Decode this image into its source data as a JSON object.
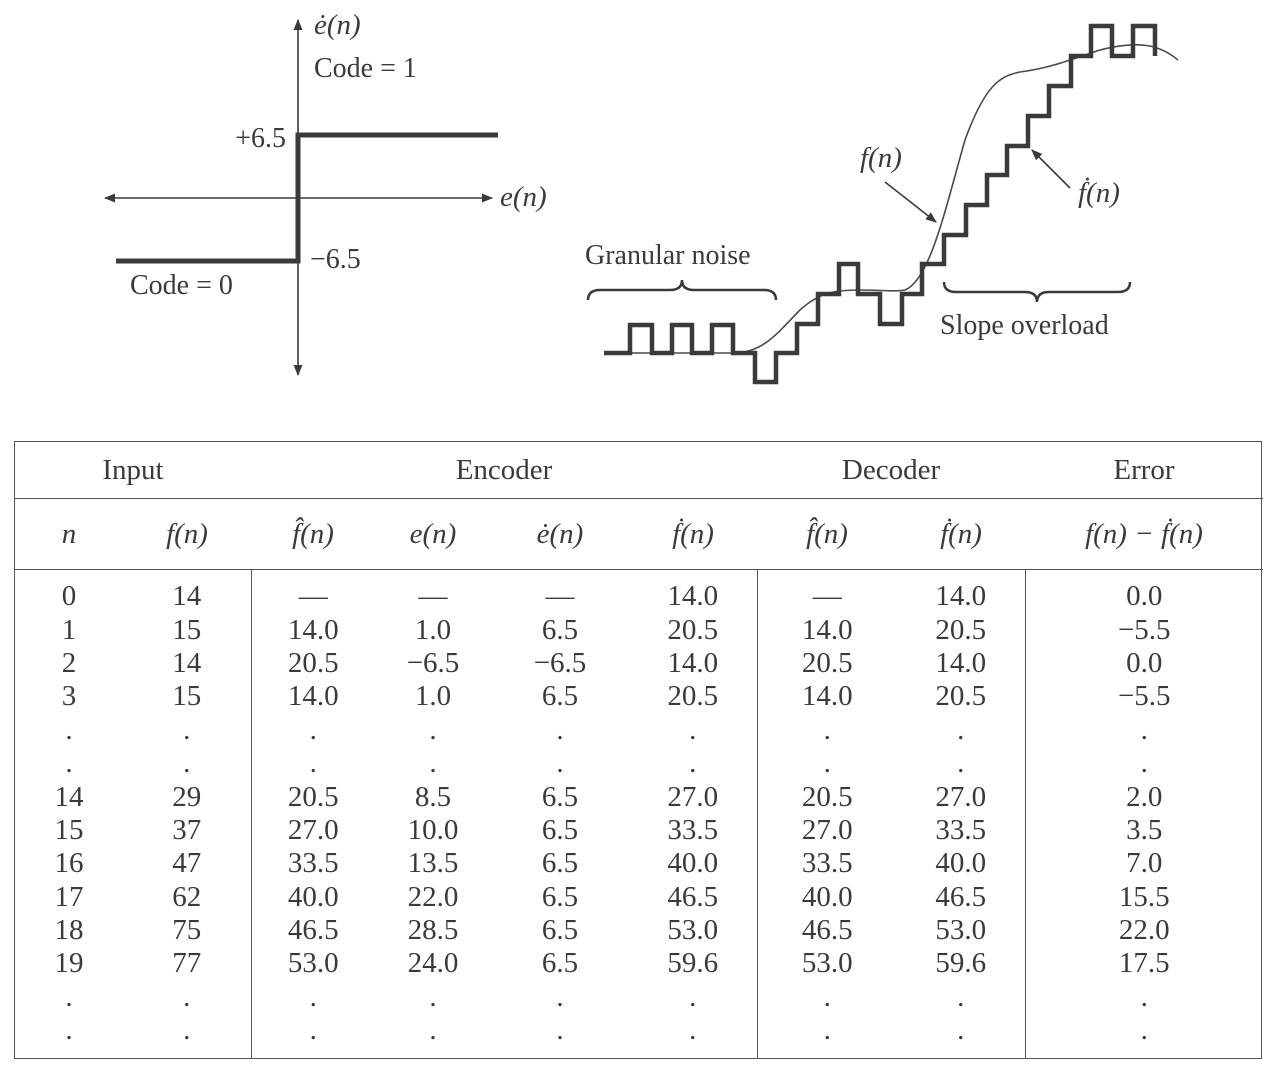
{
  "figure": {
    "quantizer": {
      "y_axis_label": "ė(n)",
      "code_one": "Code = 1",
      "plus_level": "+6.5",
      "minus_level": "−6.5",
      "x_axis_label": "e(n)",
      "code_zero": "Code = 0"
    },
    "waveform": {
      "granular_noise": "Granular noise",
      "slope_overload": "Slope overload",
      "signal_label": "f(n)",
      "staircase_label": "ḟ(n)"
    }
  },
  "table": {
    "groups": [
      "Input",
      "Encoder",
      "Decoder",
      "Error"
    ],
    "headers": [
      "n",
      "f(n)",
      "f̂(n)",
      "e(n)",
      "ė(n)",
      "ḟ(n)",
      "f̂(n)",
      "ḟ(n)",
      "f(n) − ḟ(n)"
    ],
    "rows": [
      [
        "0",
        "14",
        "—",
        "—",
        "—",
        "14.0",
        "—",
        "14.0",
        "0.0"
      ],
      [
        "1",
        "15",
        "14.0",
        "1.0",
        "6.5",
        "20.5",
        "14.0",
        "20.5",
        "−5.5"
      ],
      [
        "2",
        "14",
        "20.5",
        "−6.5",
        "−6.5",
        "14.0",
        "20.5",
        "14.0",
        "0.0"
      ],
      [
        "3",
        "15",
        "14.0",
        "1.0",
        "6.5",
        "20.5",
        "14.0",
        "20.5",
        "−5.5"
      ],
      [
        ".",
        ".",
        ".",
        ".",
        ".",
        ".",
        ".",
        ".",
        "."
      ],
      [
        ".",
        ".",
        ".",
        ".",
        ".",
        ".",
        ".",
        ".",
        "."
      ],
      [
        "14",
        "29",
        "20.5",
        "8.5",
        "6.5",
        "27.0",
        "20.5",
        "27.0",
        "2.0"
      ],
      [
        "15",
        "37",
        "27.0",
        "10.0",
        "6.5",
        "33.5",
        "27.0",
        "33.5",
        "3.5"
      ],
      [
        "16",
        "47",
        "33.5",
        "13.5",
        "6.5",
        "40.0",
        "33.5",
        "40.0",
        "7.0"
      ],
      [
        "17",
        "62",
        "40.0",
        "22.0",
        "6.5",
        "46.5",
        "40.0",
        "46.5",
        "15.5"
      ],
      [
        "18",
        "75",
        "46.5",
        "28.5",
        "6.5",
        "53.0",
        "46.5",
        "53.0",
        "22.0"
      ],
      [
        "19",
        "77",
        "53.0",
        "24.0",
        "6.5",
        "59.6",
        "53.0",
        "59.6",
        "17.5"
      ],
      [
        ".",
        ".",
        ".",
        ".",
        ".",
        ".",
        ".",
        ".",
        "."
      ],
      [
        ".",
        ".",
        ".",
        ".",
        ".",
        ".",
        ".",
        ".",
        "."
      ]
    ]
  }
}
